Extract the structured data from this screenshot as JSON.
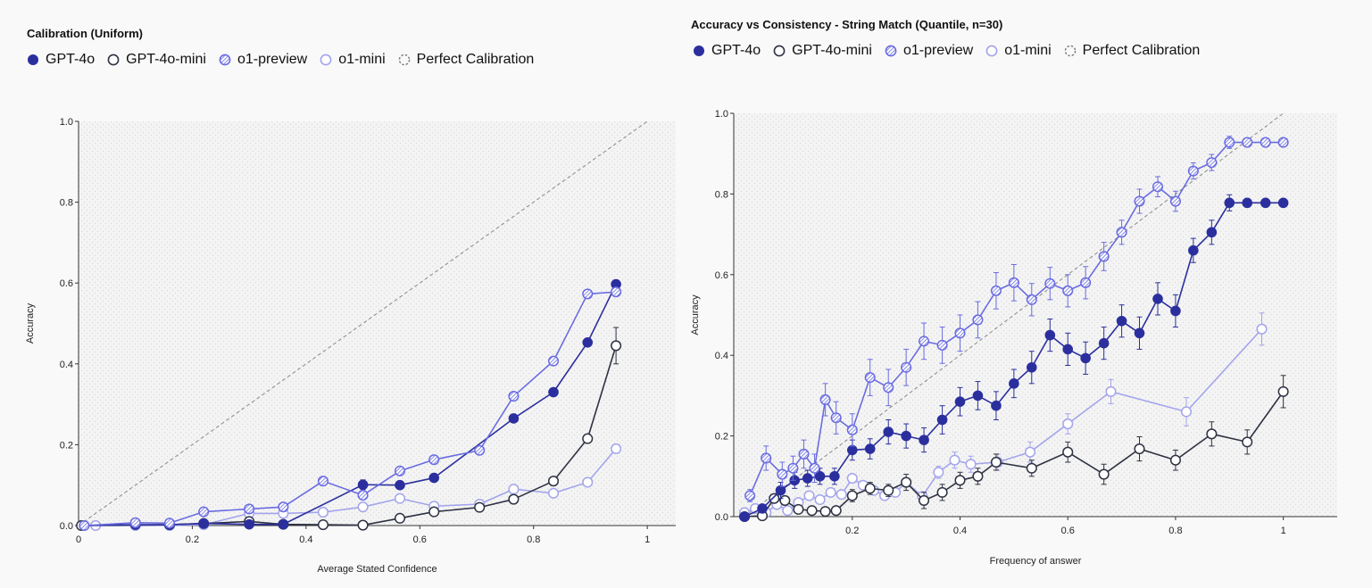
{
  "chart_data": [
    {
      "type": "line",
      "title": "Calibration (Uniform)",
      "xlabel": "Average Stated Confidence",
      "ylabel": "Accuracy",
      "xlim": [
        0,
        1.05
      ],
      "ylim": [
        0,
        1.0
      ],
      "xticks": [
        "0",
        "0.2",
        "0.4",
        "0.6",
        "0.8",
        "1"
      ],
      "xtick_values": [
        0,
        0.2,
        0.4,
        0.6,
        0.8,
        1.0
      ],
      "yticks": [
        "0.0",
        "0.2",
        "0.4",
        "0.6",
        "0.8",
        "1.0"
      ],
      "ytick_values": [
        0,
        0.2,
        0.4,
        0.6,
        0.8,
        1.0
      ],
      "grid": "dotted background",
      "legend_position": "top-left",
      "reference_line": {
        "name": "Perfect Calibration",
        "from": [
          0,
          0
        ],
        "to": [
          1,
          1
        ]
      },
      "series": [
        {
          "name": "GPT-4o",
          "style": "filled",
          "color": "#2b2f9e",
          "x": [
            0.01,
            0.1,
            0.16,
            0.22,
            0.3,
            0.36,
            0.5,
            0.565,
            0.625,
            0.765,
            0.835,
            0.895,
            0.945
          ],
          "y": [
            0.0,
            0.002,
            0.002,
            0.005,
            0.003,
            0.003,
            0.101,
            0.1,
            0.118,
            0.265,
            0.33,
            0.453,
            0.597
          ],
          "err": [
            0,
            0,
            0,
            0,
            0,
            0,
            0.012,
            0.01,
            0.006,
            0.006,
            0.006,
            0.006,
            0.01
          ]
        },
        {
          "name": "GPT-4o-mini",
          "style": "hollow",
          "color": "#2e3242",
          "x": [
            0.005,
            0.16,
            0.22,
            0.3,
            0.36,
            0.43,
            0.5,
            0.565,
            0.625,
            0.705,
            0.765,
            0.835,
            0.895,
            0.945
          ],
          "y": [
            0.0,
            0.002,
            0.005,
            0.01,
            0.003,
            0.002,
            0.001,
            0.018,
            0.034,
            0.045,
            0.065,
            0.11,
            0.215,
            0.445
          ],
          "err": [
            0,
            0,
            0,
            0,
            0,
            0,
            0,
            0,
            0,
            0,
            0,
            0.008,
            0.01,
            0.045
          ]
        },
        {
          "name": "o1-preview",
          "style": "hatched",
          "color": "#6a6ce0",
          "x": [
            0.01,
            0.1,
            0.16,
            0.22,
            0.3,
            0.36,
            0.43,
            0.5,
            0.565,
            0.625,
            0.705,
            0.765,
            0.835,
            0.895,
            0.945
          ],
          "y": [
            0.0,
            0.007,
            0.006,
            0.034,
            0.041,
            0.046,
            0.11,
            0.075,
            0.135,
            0.163,
            0.186,
            0.32,
            0.407,
            0.573,
            0.578
          ],
          "err": [
            0,
            0,
            0,
            0,
            0,
            0,
            0,
            0,
            0,
            0,
            0,
            0,
            0,
            0,
            0
          ]
        },
        {
          "name": "o1-mini",
          "style": "light",
          "color": "#a3a4ec",
          "x": [
            0.03,
            0.1,
            0.16,
            0.22,
            0.3,
            0.36,
            0.43,
            0.5,
            0.565,
            0.625,
            0.705,
            0.765,
            0.835,
            0.895,
            0.945
          ],
          "y": [
            0.0,
            0.0,
            0.0,
            0.002,
            0.03,
            0.03,
            0.033,
            0.046,
            0.067,
            0.048,
            0.053,
            0.09,
            0.08,
            0.107,
            0.19
          ],
          "err": [
            0,
            0,
            0,
            0,
            0,
            0,
            0,
            0,
            0,
            0,
            0,
            0,
            0,
            0,
            0
          ]
        }
      ]
    },
    {
      "type": "line",
      "title": "Accuracy vs Consistency - String Match (Quantile, n=30)",
      "xlabel": "Frequency of answer",
      "ylabel": "Accuracy",
      "xlim": [
        -0.02,
        1.1
      ],
      "ylim": [
        0,
        1.0
      ],
      "xticks": [
        "0.2",
        "0.4",
        "0.6",
        "0.8",
        "1"
      ],
      "xtick_values": [
        0.2,
        0.4,
        0.6,
        0.8,
        1.0
      ],
      "yticks": [
        "0.0",
        "0.2",
        "0.4",
        "0.6",
        "0.8",
        "1.0"
      ],
      "ytick_values": [
        0,
        0.2,
        0.4,
        0.6,
        0.8,
        1.0
      ],
      "grid": "dotted background",
      "legend_position": "top-left",
      "reference_line": {
        "name": "Perfect Calibration",
        "from": [
          0.0,
          0.0
        ],
        "to": [
          1.0,
          1.0
        ]
      },
      "series": [
        {
          "name": "GPT-4o",
          "style": "filled",
          "color": "#2b2f9e",
          "x": [
            0.0,
            0.033,
            0.067,
            0.093,
            0.117,
            0.14,
            0.167,
            0.2,
            0.233,
            0.267,
            0.3,
            0.333,
            0.367,
            0.4,
            0.433,
            0.467,
            0.5,
            0.533,
            0.567,
            0.6,
            0.633,
            0.667,
            0.7,
            0.733,
            0.767,
            0.8,
            0.833,
            0.867,
            0.9,
            0.933,
            0.967,
            1.0
          ],
          "y": [
            0.0,
            0.02,
            0.065,
            0.09,
            0.095,
            0.1,
            0.1,
            0.165,
            0.168,
            0.21,
            0.2,
            0.19,
            0.24,
            0.285,
            0.3,
            0.275,
            0.33,
            0.37,
            0.45,
            0.415,
            0.393,
            0.43,
            0.485,
            0.455,
            0.54,
            0.51,
            0.66,
            0.705,
            0.778,
            0.778,
            0.778,
            0.778
          ],
          "err": [
            0,
            0,
            0.02,
            0.02,
            0.02,
            0.02,
            0.02,
            0.025,
            0.025,
            0.03,
            0.03,
            0.03,
            0.035,
            0.035,
            0.035,
            0.035,
            0.035,
            0.04,
            0.04,
            0.04,
            0.04,
            0.04,
            0.04,
            0.04,
            0.04,
            0.04,
            0.03,
            0.03,
            0.02,
            0,
            0,
            0
          ]
        },
        {
          "name": "GPT-4o-mini",
          "style": "hollow",
          "color": "#2e3242",
          "x": [
            0.0,
            0.033,
            0.055,
            0.075,
            0.1,
            0.125,
            0.15,
            0.17,
            0.2,
            0.233,
            0.267,
            0.3,
            0.333,
            0.367,
            0.4,
            0.433,
            0.467,
            0.533,
            0.6,
            0.667,
            0.733,
            0.8,
            0.867,
            0.933,
            1.0
          ],
          "y": [
            0.0,
            0.002,
            0.045,
            0.04,
            0.018,
            0.015,
            0.013,
            0.015,
            0.052,
            0.07,
            0.065,
            0.085,
            0.04,
            0.06,
            0.09,
            0.1,
            0.135,
            0.12,
            0.16,
            0.105,
            0.168,
            0.14,
            0.205,
            0.185,
            0.31
          ],
          "err": [
            0,
            0,
            0,
            0,
            0,
            0,
            0,
            0,
            0.015,
            0.015,
            0.015,
            0.02,
            0.02,
            0.02,
            0.02,
            0.02,
            0.02,
            0.02,
            0.025,
            0.025,
            0.03,
            0.025,
            0.03,
            0.03,
            0.04
          ]
        },
        {
          "name": "o1-preview",
          "style": "hatched",
          "color": "#6a6ce0",
          "x": [
            0.01,
            0.04,
            0.07,
            0.09,
            0.11,
            0.13,
            0.15,
            0.17,
            0.2,
            0.233,
            0.267,
            0.3,
            0.333,
            0.367,
            0.4,
            0.433,
            0.467,
            0.5,
            0.533,
            0.567,
            0.6,
            0.633,
            0.667,
            0.7,
            0.733,
            0.767,
            0.8,
            0.833,
            0.867,
            0.9,
            0.933,
            0.967,
            1.0
          ],
          "y": [
            0.052,
            0.145,
            0.105,
            0.12,
            0.155,
            0.12,
            0.29,
            0.245,
            0.215,
            0.345,
            0.32,
            0.37,
            0.435,
            0.425,
            0.455,
            0.488,
            0.56,
            0.58,
            0.538,
            0.578,
            0.56,
            0.58,
            0.645,
            0.705,
            0.782,
            0.818,
            0.782,
            0.857,
            0.878,
            0.928,
            0.928,
            0.928,
            0.928
          ],
          "err": [
            0.015,
            0.03,
            0.03,
            0.03,
            0.035,
            0.035,
            0.04,
            0.04,
            0.04,
            0.045,
            0.045,
            0.045,
            0.045,
            0.045,
            0.045,
            0.045,
            0.045,
            0.045,
            0.04,
            0.04,
            0.04,
            0.04,
            0.035,
            0.03,
            0.03,
            0.025,
            0.025,
            0.02,
            0.02,
            0.015,
            0,
            0,
            0
          ]
        },
        {
          "name": "o1-mini",
          "style": "light",
          "color": "#a3a4ec",
          "x": [
            0.0,
            0.02,
            0.04,
            0.06,
            0.08,
            0.1,
            0.12,
            0.14,
            0.16,
            0.18,
            0.2,
            0.22,
            0.24,
            0.26,
            0.28,
            0.3,
            0.33,
            0.36,
            0.39,
            0.42,
            0.47,
            0.53,
            0.6,
            0.68,
            0.82,
            0.96
          ],
          "y": [
            0.01,
            0.02,
            0.01,
            0.03,
            0.015,
            0.035,
            0.052,
            0.042,
            0.06,
            0.055,
            0.095,
            0.078,
            0.065,
            0.052,
            0.06,
            0.085,
            0.05,
            0.11,
            0.14,
            0.13,
            0.135,
            0.16,
            0.23,
            0.31,
            0.26,
            0.465
          ],
          "err": [
            0,
            0,
            0,
            0,
            0,
            0,
            0,
            0,
            0,
            0,
            0.01,
            0.01,
            0.01,
            0.01,
            0.01,
            0.01,
            0.01,
            0.015,
            0.02,
            0.02,
            0.02,
            0.025,
            0.025,
            0.03,
            0.035,
            0.04
          ]
        }
      ]
    }
  ]
}
